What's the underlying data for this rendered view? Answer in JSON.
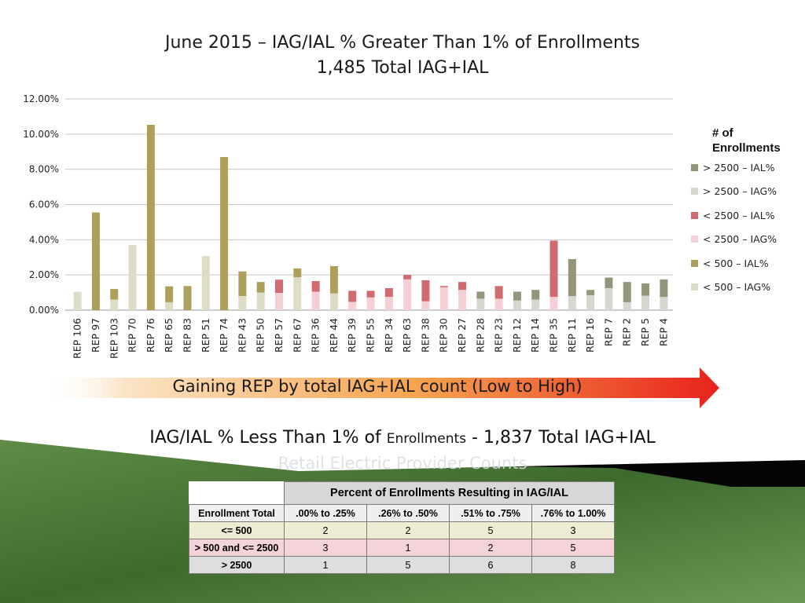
{
  "titles": {
    "line1": "June 2015 – IAG/IAL % Greater Than 1% of Enrollments",
    "line2": "1,485 Total IAG+IAL"
  },
  "chart_data": {
    "type": "bar",
    "stacked": true,
    "title": "June 2015 – IAG/IAL % Greater Than 1% of Enrollments",
    "subtitle": "1,485 Total IAG+IAL",
    "xlabel": "",
    "ylabel": "",
    "ylim": [
      0,
      0.12
    ],
    "yticks": [
      "0.00%",
      "2.00%",
      "4.00%",
      "6.00%",
      "8.00%",
      "10.00%",
      "12.00%"
    ],
    "grid": true,
    "legend_position": "right",
    "legend_title": "# of Enrollments",
    "categories": [
      "REP 106",
      "REP 97",
      "REP 103",
      "REP 70",
      "REP 76",
      "REP 65",
      "REP 83",
      "REP 51",
      "REP 74",
      "REP 43",
      "REP 50",
      "REP 57",
      "REP 67",
      "REP 36",
      "REP 44",
      "REP 39",
      "REP 55",
      "REP 34",
      "REP 63",
      "REP 38",
      "REP 30",
      "REP 27",
      "REP 28",
      "REP 23",
      "REP 12",
      "REP 14",
      "REP 35",
      "REP 11",
      "REP 16",
      "REP 7",
      "REP 2",
      "REP 5",
      "REP 4"
    ],
    "series": [
      {
        "name": "< 500 – IAG%",
        "color": "#ddddc6",
        "values": [
          0.0105,
          0,
          0.006,
          0.037,
          0,
          0.0045,
          0,
          0.0307,
          0,
          0.008,
          0.01,
          0,
          0.0187,
          0,
          0.0095,
          0,
          0,
          0,
          0,
          0,
          0,
          0,
          0,
          0,
          0,
          0,
          0,
          0,
          0,
          0,
          0,
          0,
          0
        ]
      },
      {
        "name": "< 500 – IAL%",
        "color": "#aea05a",
        "values": [
          0,
          0.0555,
          0.006,
          0,
          0.1053,
          0.009,
          0.0137,
          0,
          0.087,
          0.014,
          0.006,
          0,
          0.005,
          0,
          0.0155,
          0,
          0,
          0,
          0,
          0,
          0,
          0,
          0,
          0,
          0,
          0,
          0,
          0,
          0,
          0,
          0,
          0,
          0
        ]
      },
      {
        "name": "< 2500 – IAG%",
        "color": "#f4cfd6",
        "values": [
          0,
          0,
          0,
          0,
          0,
          0,
          0,
          0,
          0,
          0,
          0,
          0.0098,
          0,
          0.0105,
          0,
          0.0047,
          0.0072,
          0.0075,
          0.0175,
          0.005,
          0.013,
          0.0115,
          0,
          0.0065,
          0,
          0,
          0.0075,
          0,
          0,
          0,
          0,
          0,
          0
        ]
      },
      {
        "name": "< 2500 – IAL%",
        "color": "#d16b6f",
        "values": [
          0,
          0,
          0,
          0,
          0,
          0,
          0,
          0,
          0,
          0,
          0,
          0.0075,
          0,
          0.006,
          0,
          0.0063,
          0.0038,
          0.005,
          0.0025,
          0.012,
          0.0007,
          0.0045,
          0,
          0.0072,
          0,
          0,
          0.032,
          0,
          0,
          0,
          0,
          0,
          0
        ]
      },
      {
        "name": "> 2500 – IAG%",
        "color": "#d7d7d0",
        "values": [
          0,
          0,
          0,
          0,
          0,
          0,
          0,
          0,
          0,
          0,
          0,
          0,
          0,
          0,
          0,
          0,
          0,
          0,
          0,
          0,
          0,
          0,
          0.0065,
          0,
          0.0055,
          0.006,
          0,
          0.008,
          0.0085,
          0.0125,
          0.0045,
          0.0082,
          0.0075
        ]
      },
      {
        "name": "> 2500 – IAL%",
        "color": "#959579",
        "values": [
          0,
          0,
          0,
          0,
          0,
          0,
          0,
          0,
          0,
          0,
          0,
          0,
          0,
          0,
          0,
          0,
          0,
          0,
          0,
          0,
          0,
          0,
          0.004,
          0,
          0.005,
          0.0055,
          0,
          0.021,
          0.003,
          0.006,
          0.0115,
          0.007,
          0.01
        ]
      }
    ]
  },
  "legend": {
    "title": "# of Enrollments",
    "items": [
      {
        "label": "> 2500 – IAL%",
        "color": "#959579"
      },
      {
        "label": "> 2500 – IAG%",
        "color": "#d7d7d0"
      },
      {
        "label": "< 2500 – IAL%",
        "color": "#d16b6f"
      },
      {
        "label": "< 2500 – IAG%",
        "color": "#f4cfd6"
      },
      {
        "label": "< 500 – IAL%",
        "color": "#aea05a"
      },
      {
        "label": "< 500 – IAG%",
        "color": "#ddddc6"
      }
    ]
  },
  "arrow": {
    "text": "Gaining REP by total IAG+IAL count (Low to High)"
  },
  "lower": {
    "heading_part1": "IAG/IAL % Less Than 1% of ",
    "heading_part2": "Enrollments",
    "heading_part3": " - 1,837 Total IAG+IAL",
    "ghost_heading": "Retail Electric Provider Counts"
  },
  "table": {
    "group_header": "Percent of Enrollments Resulting in IAG/IAL",
    "columns": [
      "Enrollment Total",
      ".00% to .25%",
      ".26% to .50%",
      ".51% to .75%",
      ".76% to 1.00%"
    ],
    "rows": [
      {
        "label": "<= 500",
        "values": [
          "2",
          "2",
          "5",
          "3"
        ]
      },
      {
        "label": "> 500 and <= 2500",
        "values": [
          "3",
          "1",
          "2",
          "5"
        ]
      },
      {
        "label": "> 2500",
        "values": [
          "1",
          "5",
          "6",
          "8"
        ]
      }
    ]
  }
}
